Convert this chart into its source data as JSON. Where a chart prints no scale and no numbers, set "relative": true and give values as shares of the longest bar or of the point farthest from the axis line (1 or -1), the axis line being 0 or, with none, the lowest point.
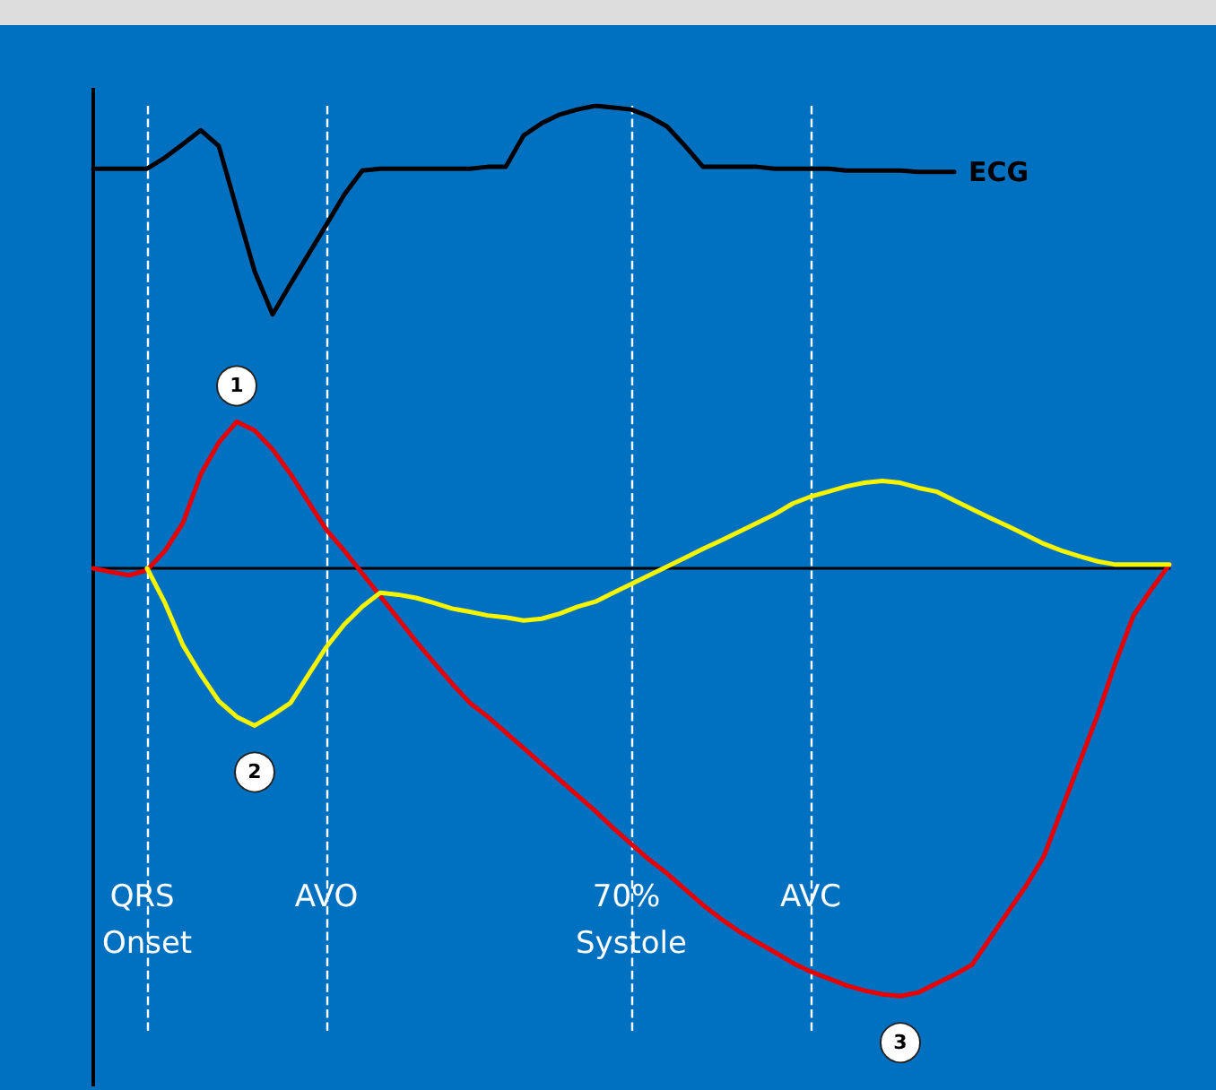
{
  "chart_data": {
    "type": "line",
    "relative": true,
    "legend": false,
    "grid": false,
    "tick_labels": "x",
    "marker": "none",
    "categories": [
      null,
      null,
      null,
      "QRS Onset",
      null,
      null,
      null,
      null,
      null,
      null,
      null,
      null,
      null,
      "AVO",
      null,
      null,
      null,
      null,
      null,
      null,
      null,
      null,
      null,
      null,
      null,
      null,
      null,
      null,
      null,
      null,
      "70% Systole",
      null,
      null,
      null,
      null,
      null,
      null,
      null,
      null,
      null,
      "AVC",
      null,
      null,
      null,
      null,
      null,
      null,
      null,
      null,
      null,
      null,
      null,
      null,
      null,
      null,
      null,
      null,
      null,
      null,
      null,
      null
    ],
    "series": [
      {
        "name": "ECG",
        "color": "#000000",
        "values": [
          0.864,
          0.864,
          0.864,
          0.864,
          0.888,
          0.917,
          0.947,
          0.913,
          0.777,
          0.642,
          0.549,
          0.615,
          0.679,
          0.743,
          0.808,
          0.86,
          0.864,
          0.864,
          0.864,
          0.864,
          0.864,
          0.864,
          0.868,
          0.868,
          0.936,
          0.962,
          0.981,
          0.992,
          1,
          0.996,
          0.992,
          0.977,
          0.955,
          0.913,
          0.868,
          0.868,
          0.868,
          0.868,
          0.864,
          0.864,
          0.864,
          0.864,
          0.86,
          0.86,
          0.86,
          0.86,
          0.857,
          0.857,
          0.857,
          null,
          null,
          null,
          null,
          null,
          null,
          null,
          null,
          null,
          null,
          null,
          null
        ]
      },
      {
        "color": "#e60000",
        "values": [
          0,
          -0.008,
          -0.015,
          -0.004,
          0.038,
          0.098,
          0.204,
          0.272,
          0.317,
          0.298,
          0.257,
          0.204,
          0.143,
          0.083,
          0.038,
          -0.011,
          -0.06,
          -0.109,
          -0.158,
          -0.204,
          -0.249,
          -0.291,
          -0.321,
          -0.355,
          -0.389,
          -0.423,
          -0.457,
          -0.491,
          -0.525,
          -0.562,
          -0.596,
          -0.63,
          -0.66,
          -0.694,
          -0.728,
          -0.758,
          -0.785,
          -0.808,
          -0.83,
          -0.853,
          -0.872,
          -0.887,
          -0.902,
          -0.913,
          -0.921,
          -0.925,
          -0.917,
          -0.898,
          -0.879,
          -0.857,
          -0.8,
          -0.743,
          -0.687,
          -0.623,
          -0.521,
          -0.419,
          -0.317,
          -0.204,
          -0.102,
          -0.045,
          0.008
        ]
      },
      {
        "color": "#f5f500",
        "values": [
          null,
          null,
          null,
          0,
          -0.075,
          -0.166,
          -0.23,
          -0.287,
          -0.321,
          -0.34,
          -0.317,
          -0.291,
          -0.23,
          -0.17,
          -0.121,
          -0.083,
          -0.053,
          -0.057,
          -0.064,
          -0.075,
          -0.087,
          -0.094,
          -0.102,
          -0.106,
          -0.113,
          -0.109,
          -0.098,
          -0.083,
          -0.072,
          -0.053,
          -0.034,
          -0.015,
          0.004,
          0.023,
          0.042,
          0.06,
          0.079,
          0.098,
          0.117,
          0.14,
          0.155,
          0.166,
          0.177,
          0.185,
          0.189,
          0.185,
          0.174,
          0.166,
          0.147,
          0.128,
          0.109,
          0.091,
          0.072,
          0.053,
          0.038,
          0.026,
          0.015,
          0.008,
          0.008,
          0.008,
          0.008
        ]
      }
    ],
    "ref_lines": [
      {
        "axis": "x",
        "value": "QRS Onset",
        "color": "#ffffff",
        "line_style": "dashed"
      },
      {
        "axis": "x",
        "value": "AVO",
        "color": "#ffffff",
        "line_style": "dashed"
      },
      {
        "axis": "x",
        "value": "70% Systole",
        "color": "#ffffff",
        "line_style": "dashed"
      },
      {
        "axis": "x",
        "value": "AVC",
        "color": "#ffffff",
        "line_style": "dashed"
      }
    ],
    "annotations": [
      {
        "text": "1",
        "y": 0.317
      },
      {
        "text": "2",
        "y": -0.34
      },
      {
        "text": "3",
        "y": -0.925
      }
    ]
  }
}
